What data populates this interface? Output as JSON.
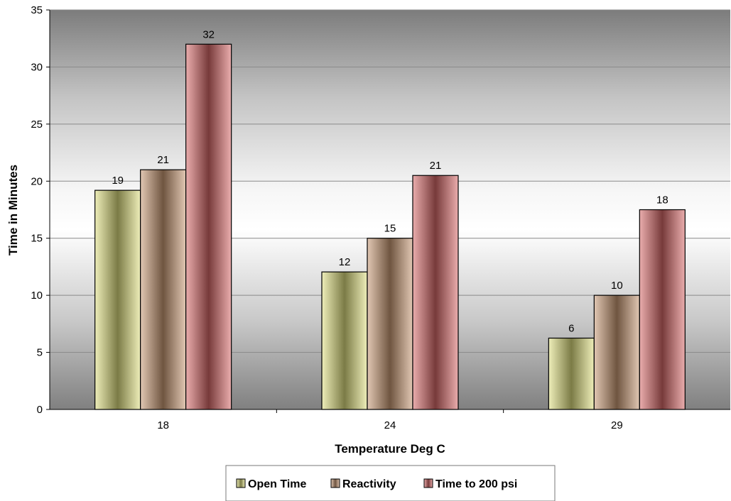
{
  "chart_data": {
    "type": "bar",
    "categories": [
      "18",
      "24",
      "29"
    ],
    "series": [
      {
        "name": "Open Time",
        "values": [
          19.2,
          12.05,
          6.25
        ],
        "labels": [
          "19",
          "12",
          "6"
        ],
        "color": "#e0e080"
      },
      {
        "name": "Reactivity",
        "values": [
          21,
          15,
          10
        ],
        "labels": [
          "21",
          "15",
          "10"
        ],
        "color": "#c99a74"
      },
      {
        "name": "Time to 200 psi",
        "values": [
          32,
          20.5,
          17.5
        ],
        "labels": [
          "32",
          "21",
          "18"
        ],
        "color": "#d96a6a"
      }
    ],
    "xlabel": "Temperature Deg C",
    "ylabel": "Time in Minutes",
    "ylim": [
      0,
      35
    ],
    "yticks": [
      "0",
      "5",
      "10",
      "15",
      "20",
      "25",
      "30",
      "35"
    ],
    "grid": true,
    "legend": "bottom"
  }
}
